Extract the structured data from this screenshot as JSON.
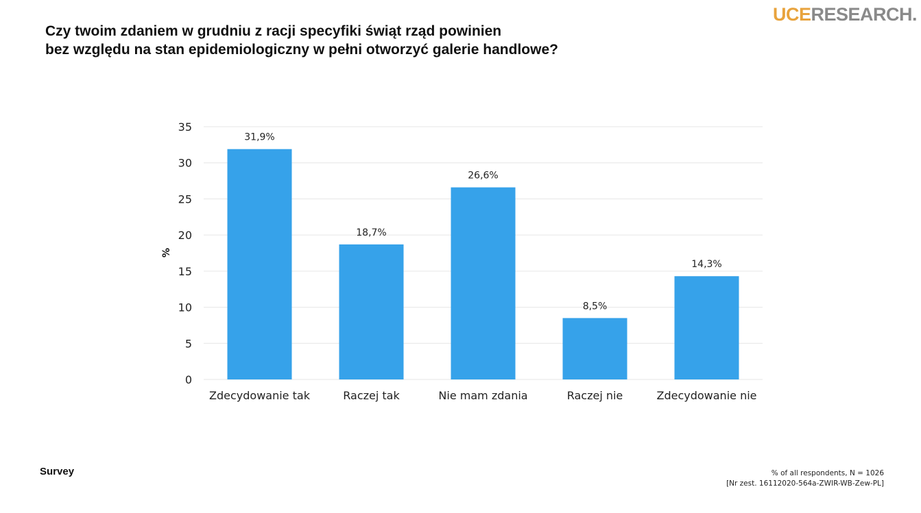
{
  "logo": {
    "part1": "UCE",
    "part2": "RESEARCH.",
    "color1": "#e8a33d",
    "color2": "#8a8a8a"
  },
  "title": {
    "line1": "Czy twoim zdaniem w grudniu z racji specyfiki świąt rząd powinien",
    "line2": "bez względu na stan epidemiologiczny w pełni otworzyć galerie handlowe?"
  },
  "footer": {
    "source": "Survey",
    "respondents": "% of all respondents, N = 1026",
    "reference": "[Nr zest. 16112020-564a-ZWIR-WB-Zew-PL]"
  },
  "chart_data": {
    "type": "bar",
    "title": "Czy twoim zdaniem w grudniu z racji specyfiki świąt rząd powinien bez względu na stan epidemiologiczny w pełni otworzyć galerie handlowe?",
    "categories": [
      "Zdecydowanie tak",
      "Raczej tak",
      "Nie mam zdania",
      "Raczej nie",
      "Zdecydowanie nie"
    ],
    "values": [
      31.9,
      18.7,
      26.6,
      8.5,
      14.3
    ],
    "value_labels": [
      "31,9%",
      "18,7%",
      "26,6%",
      "8,5%",
      "14,3%"
    ],
    "xlabel": "",
    "ylabel": "%",
    "ylim": [
      0,
      35
    ],
    "yticks": [
      0,
      5,
      10,
      15,
      20,
      25,
      30,
      35
    ],
    "grid": true,
    "bar_color": "#36a2ea",
    "grid_color": "#e6e6e6"
  }
}
